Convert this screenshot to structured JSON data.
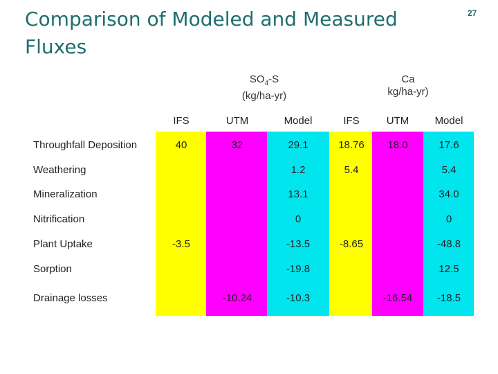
{
  "title": "Comparison of Modeled and Measured Fluxes",
  "page_number": "27",
  "colors": {
    "ifs": "#ffff00",
    "utm": "#ff00ff",
    "model": "#00e5ee",
    "title": "#1f6e6e"
  },
  "groups": {
    "so4": {
      "line1_main": "SO",
      "line1_sub": "4",
      "line1_tail": "-S",
      "line2": "(kg/ha-yr)"
    },
    "ca": {
      "line1": "Ca",
      "line2": "kg/ha-yr)"
    }
  },
  "columns": [
    "IFS",
    "UTM",
    "Model",
    "IFS",
    "UTM",
    "Model"
  ],
  "rows": [
    {
      "label": "Throughfall Deposition",
      "values": [
        "40",
        "32",
        "29.1",
        "18.76",
        "18.0",
        "17.6"
      ]
    },
    {
      "label": "Weathering",
      "values": [
        "",
        "",
        "1.2",
        "5.4",
        "",
        "5.4"
      ]
    },
    {
      "label": "Mineralization",
      "values": [
        "",
        "",
        "13.1",
        "",
        "",
        "34.0"
      ]
    },
    {
      "label": "Nitrification",
      "values": [
        "",
        "",
        "0",
        "",
        "",
        "0"
      ]
    },
    {
      "label": "Plant Uptake",
      "values": [
        "-3.5",
        "",
        "-13.5",
        "-8.65",
        "",
        "-48.8"
      ]
    },
    {
      "label": "Sorption",
      "values": [
        "",
        "",
        "-19.8",
        "",
        "",
        "12.5"
      ]
    },
    {
      "label": "Drainage losses",
      "values": [
        "",
        "-10.24",
        "-10.3",
        "",
        "-16.54",
        "-18.5"
      ]
    }
  ]
}
